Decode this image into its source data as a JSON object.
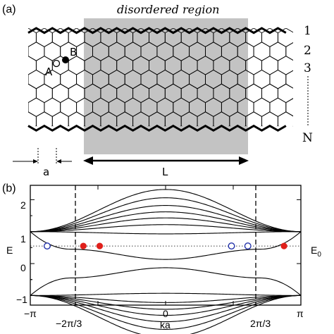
{
  "panel_a": {
    "label": "(a)",
    "region_title": "disordered region",
    "site_a": "A",
    "site_b": "B",
    "row_labels": [
      "1",
      "2",
      "3",
      "N"
    ],
    "width_label": "a",
    "length_label": "L"
  },
  "panel_b": {
    "label": "(b)",
    "energy_label": "E",
    "e0_label": "E",
    "e0_sub": "0",
    "xlabel": "ka"
  },
  "chart_data": {
    "type": "line",
    "title": "",
    "xlabel": "ka",
    "ylabel": "",
    "xlim": [
      -3.1416,
      3.1416
    ],
    "ylim": [
      -1.3,
      2.45
    ],
    "x_ticks": [
      "−π",
      "−2π/3",
      "0",
      "2π/3",
      "π"
    ],
    "y_ticks": [
      "−1",
      "0",
      "1",
      "2"
    ],
    "vlines_dashed_at": [
      -2.0944,
      2.0944
    ],
    "hline_dotted_label": "E",
    "hline_dotted_value": 0.55,
    "band_curves": {
      "upper_bands_at_center": [
        0.93,
        1.22,
        1.43,
        1.62,
        1.82,
        2.06,
        2.32
      ],
      "upper_bands_at_edge": 1.0,
      "edge_state_band": {
        "center": 0.13,
        "near_edges": 0.45,
        "edge": 1.0
      },
      "lower_bands_mirrored": true
    },
    "markers": {
      "open_circles_x": [
        -2.75,
        1.53,
        1.91
      ],
      "filled_circles_x": [
        -1.91,
        -1.53,
        2.75
      ],
      "y": 0.55
    }
  }
}
